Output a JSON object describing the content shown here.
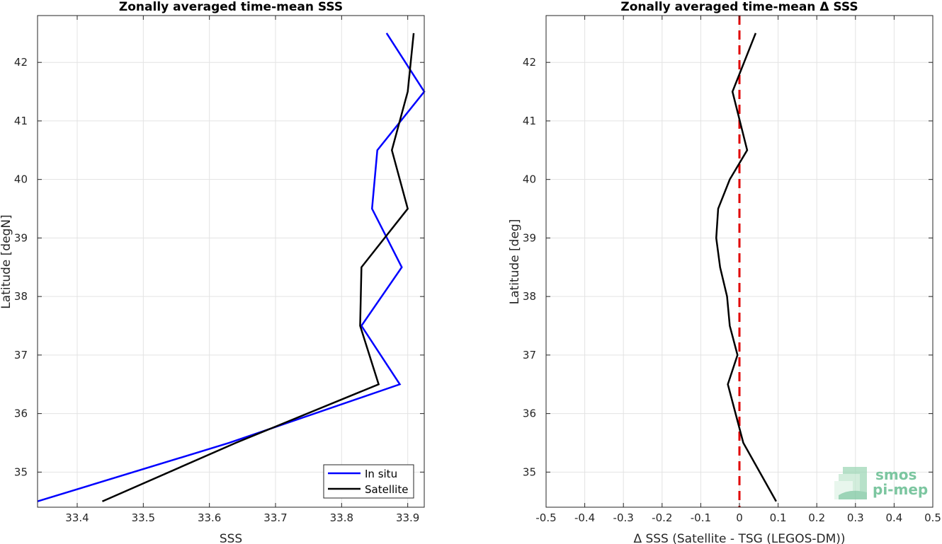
{
  "chart_data": [
    {
      "type": "line",
      "title": "Zonally averaged time-mean SSS",
      "xlabel": "SSS",
      "ylabel": "Latitude [degN]",
      "xlim": [
        33.34,
        33.925
      ],
      "ylim": [
        34.4,
        42.8
      ],
      "xticks": [
        33.4,
        33.5,
        33.6,
        33.7,
        33.8,
        33.9
      ],
      "xtick_labels": [
        "33.4",
        "33.5",
        "33.6",
        "33.7",
        "33.8",
        "33.9"
      ],
      "yticks": [
        35,
        36,
        37,
        38,
        39,
        40,
        41,
        42
      ],
      "ytick_labels": [
        "35",
        "36",
        "37",
        "38",
        "39",
        "40",
        "41",
        "42"
      ],
      "grid": true,
      "legend": "bottom-right",
      "series": [
        {
          "name": "In situ",
          "color": "#0000ff",
          "x": [
            33.34,
            33.63,
            33.888,
            33.83,
            33.891,
            33.846,
            33.854,
            33.925,
            33.868
          ],
          "y": [
            34.5,
            35.5,
            36.5,
            37.5,
            38.5,
            39.5,
            40.5,
            41.5,
            42.5
          ]
        },
        {
          "name": "Satellite",
          "color": "#000000",
          "x": [
            33.438,
            33.64,
            33.856,
            33.828,
            33.83,
            33.9,
            33.876,
            33.9,
            33.909
          ],
          "y": [
            34.5,
            35.5,
            36.5,
            37.5,
            38.5,
            39.5,
            40.5,
            41.5,
            42.5
          ]
        }
      ]
    },
    {
      "type": "line",
      "title": "Zonally averaged time-mean Δ SSS",
      "xlabel": "Δ SSS (Satellite - TSG (LEGOS-DM))",
      "ylabel": "Latitude [deg]",
      "xlim": [
        -0.5,
        0.5
      ],
      "ylim": [
        34.4,
        42.8
      ],
      "xticks": [
        -0.5,
        -0.4,
        -0.3,
        -0.2,
        -0.1,
        0,
        0.1,
        0.2,
        0.3,
        0.4,
        0.5
      ],
      "xtick_labels": [
        "-0.5",
        "-0.4",
        "-0.3",
        "-0.2",
        "-0.1",
        "0",
        "0.1",
        "0.2",
        "0.3",
        "0.4",
        "0.5"
      ],
      "yticks": [
        35,
        36,
        37,
        38,
        39,
        40,
        41,
        42
      ],
      "ytick_labels": [
        "35",
        "36",
        "37",
        "38",
        "39",
        "40",
        "41",
        "42"
      ],
      "grid": true,
      "reference_line": {
        "x": 0,
        "color": "#e00000",
        "style": "dashed"
      },
      "series": [
        {
          "color": "#000000",
          "x": [
            0.095,
            0.01,
            -0.03,
            -0.005,
            -0.025,
            -0.032,
            -0.05,
            -0.06,
            -0.055,
            -0.025,
            0.02,
            -0.018,
            0.042
          ],
          "y": [
            34.5,
            35.5,
            36.5,
            37,
            37.5,
            38,
            38.5,
            39,
            39.5,
            40,
            40.5,
            41.5,
            42.5
          ]
        }
      ]
    }
  ],
  "logo": {
    "line1": "smos",
    "line2": "pi-mep",
    "color": "#7cc6a0"
  }
}
